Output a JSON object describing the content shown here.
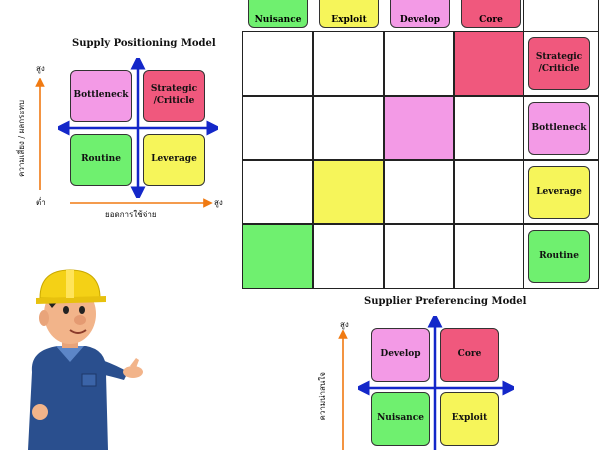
{
  "supply_model": {
    "title": "Supply Positioning Model",
    "y_axis_label": "ความเสี่ยง / ผลกระทบ",
    "y_high": "สูง",
    "x_axis_label": "ยอดการใช้จ่าย",
    "x_high": "สูง",
    "origin_low": "ต่ำ",
    "quadrants": {
      "top_left": "Bottleneck",
      "top_right": "Strategic /Criticle",
      "bottom_left": "Routine",
      "bottom_right": "Leverage"
    }
  },
  "matrix": {
    "top_row_labels": [
      "Nuisance",
      "Exploit",
      "Develop",
      "Core"
    ],
    "right_labels": [
      "Strategic /Criticle",
      "Bottleneck",
      "Leverage",
      "Routine"
    ]
  },
  "preferencing_model": {
    "title": "Supplier Preferencing Model",
    "y_axis_label": "ความน่าสนใจ",
    "y_high": "สูง",
    "quadrants": {
      "top_left": "Develop",
      "top_right": "Core",
      "bottom_left": "Nuisance",
      "bottom_right": "Exploit"
    }
  },
  "colors": {
    "pink": "#f39ae6",
    "red": "#f0587d",
    "green": "#6ff06f",
    "yellow": "#f6f55a",
    "arrow_blue": "#1327c9",
    "arrow_orange": "#f07a12"
  },
  "icons": [
    "construction-worker-character"
  ]
}
